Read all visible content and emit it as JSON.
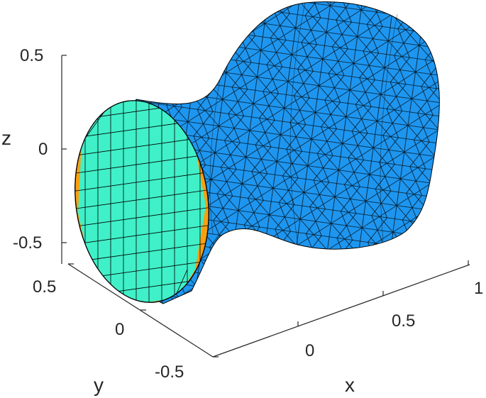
{
  "plot": {
    "type": "3d-surface-mesh",
    "axes": {
      "x": {
        "label": "x",
        "ticks": [
          "0",
          "0.5",
          "1"
        ]
      },
      "y": {
        "label": "y",
        "ticks": [
          "0.5",
          "0",
          "-0.5"
        ]
      },
      "z": {
        "label": "z",
        "ticks": [
          "0.5",
          "0",
          "-0.5"
        ]
      }
    },
    "surface_color": "#1e96f0",
    "end_cap_fill_color": "#40f0c8",
    "end_cap_edge_color": "#f8a010",
    "edge_color": "#000000"
  }
}
